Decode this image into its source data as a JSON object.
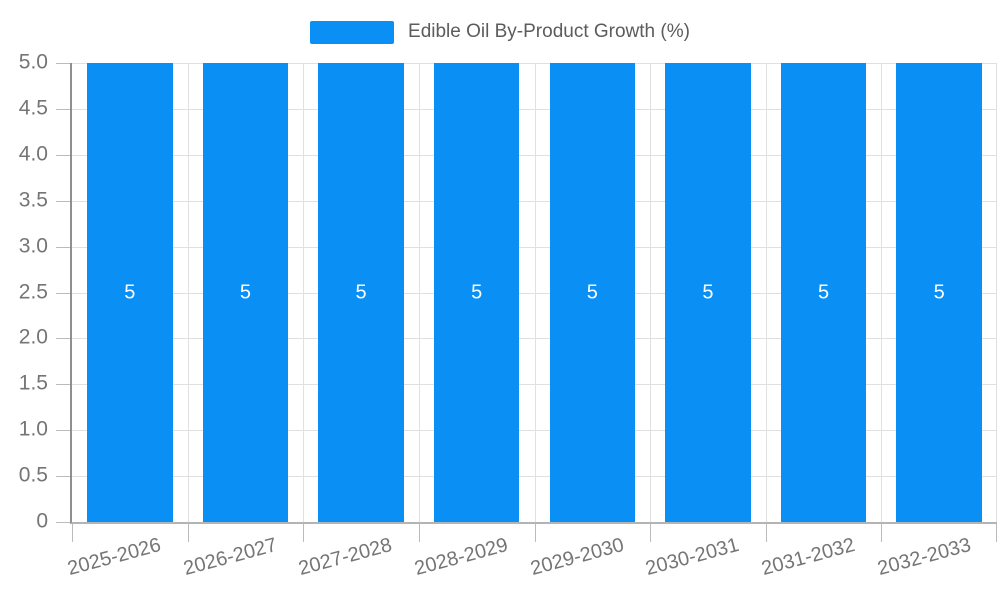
{
  "legend": {
    "label": "Edible Oil By-Product Growth (%)"
  },
  "chart_data": {
    "type": "bar",
    "title": "Edible Oil By-Product Growth (%)",
    "categories": [
      "2025-2026",
      "2026-2027",
      "2027-2028",
      "2028-2029",
      "2029-2030",
      "2030-2031",
      "2031-2032",
      "2032-2033"
    ],
    "values": [
      5,
      5,
      5,
      5,
      5,
      5,
      5,
      5
    ],
    "value_labels": [
      "5",
      "5",
      "5",
      "5",
      "5",
      "5",
      "5",
      "5"
    ],
    "xlabel": "",
    "ylabel": "",
    "ylim": [
      0,
      5
    ],
    "yticks": {
      "values": [
        0,
        0.5,
        1,
        1.5,
        2,
        2.5,
        3,
        3.5,
        4,
        4.5,
        5
      ],
      "labels": [
        "0",
        "0.5",
        "1.0",
        "1.5",
        "2.0",
        "2.5",
        "3.0",
        "3.5",
        "4.0",
        "4.5",
        "5.0"
      ]
    },
    "grid": true,
    "legend_position": "top-center",
    "colors": {
      "bar": "#0a8ff5",
      "grid_line": "#e0e0e0",
      "tick_line": "#bbbbbb",
      "axis_line_y": "#8f8f8f",
      "axis_line_x": "#b4b4b4",
      "axis_text": "#757575",
      "legend_text": "#5c5c5c",
      "value_label_text": "#ffffff",
      "background": "#ffffff"
    }
  }
}
